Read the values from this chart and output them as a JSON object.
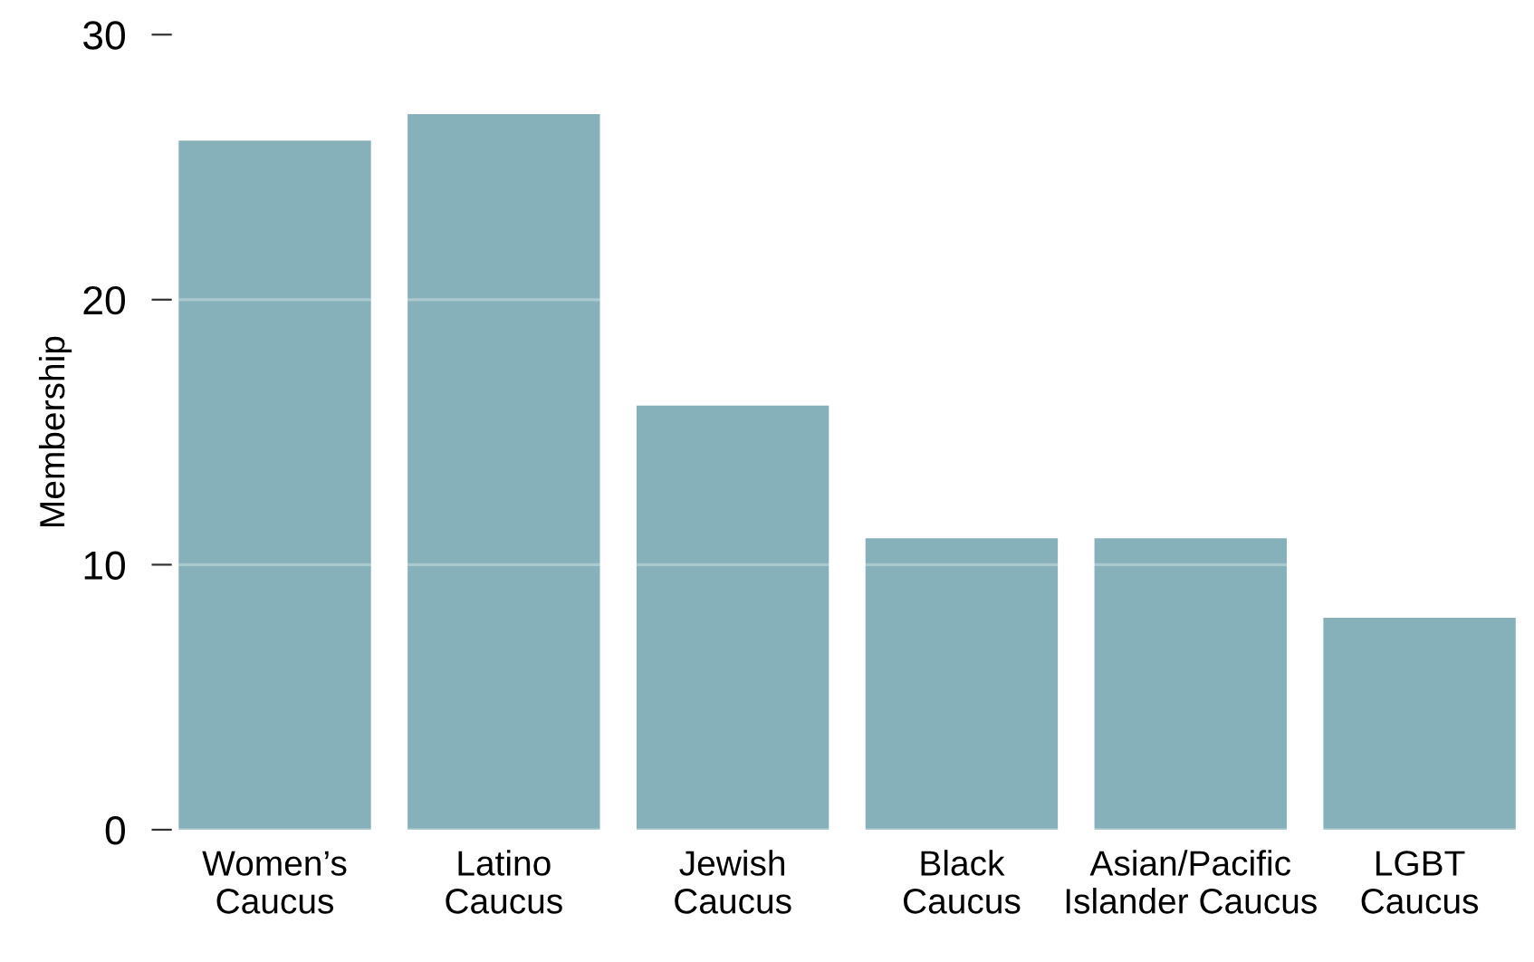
{
  "chart_data": {
    "type": "bar",
    "ylabel": "Membership",
    "categories": [
      "Women’s\nCaucus",
      "Latino\nCaucus",
      "Jewish\nCaucus",
      "Black\nCaucus",
      "Asian/Pacific\nIslander Caucus",
      "LGBT\nCaucus"
    ],
    "values": [
      26,
      27,
      16,
      11,
      11,
      8
    ],
    "color": "#87b1ba",
    "ylim": [
      0,
      30
    ],
    "yticks": [
      0,
      10,
      20,
      30
    ],
    "grid": "y"
  }
}
